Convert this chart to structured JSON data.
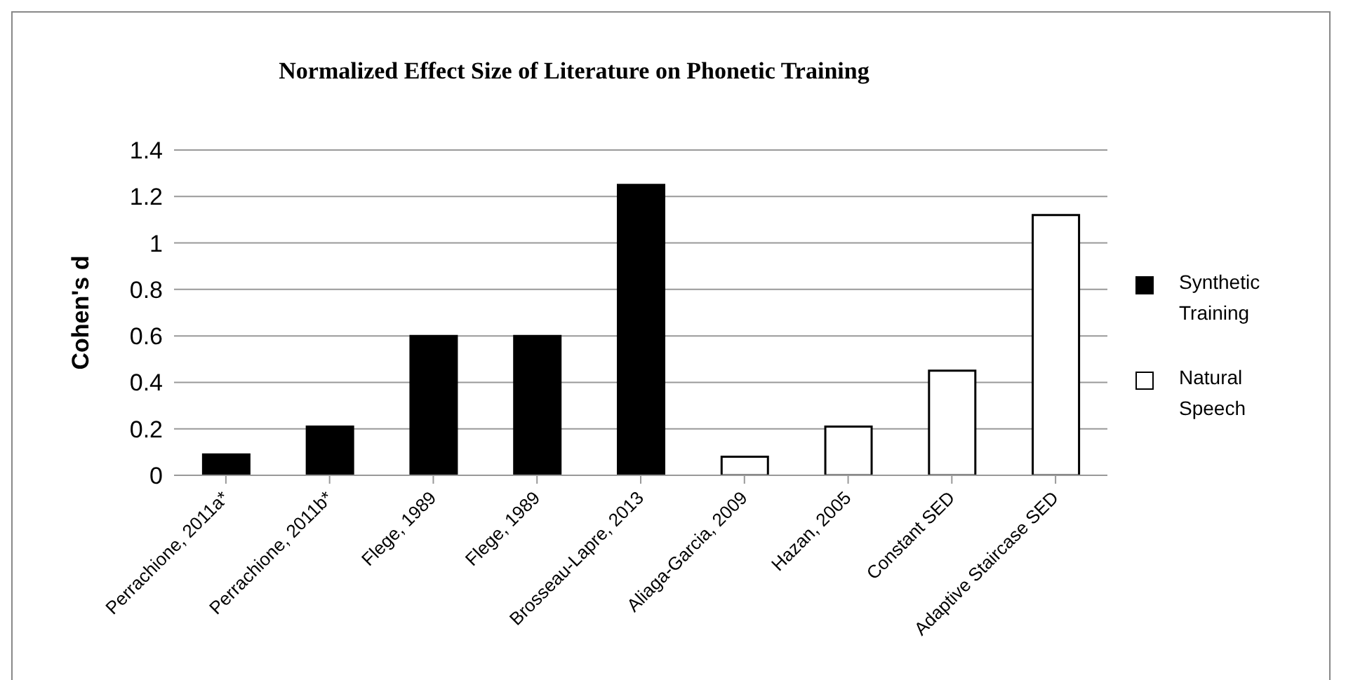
{
  "chart_data": {
    "type": "bar",
    "title": "Normalized Effect Size of Literature on Phonetic Training",
    "ylabel": "Cohen's d",
    "categories": [
      "Perrachione, 2011a*",
      "Perrachione, 2011b*",
      "Flege, 1989",
      "Flege, 1989",
      "Brosseau-Lapre, 2013",
      "Aliaga-Garcia, 2009",
      "Hazan, 2005",
      "Constant SED",
      "Adaptive Staircase SED"
    ],
    "series": [
      {
        "name": "Synthetic Training",
        "color": "#000000",
        "values": [
          0.09,
          0.21,
          0.6,
          0.6,
          1.25,
          null,
          null,
          null,
          null
        ]
      },
      {
        "name": "Natural Speech",
        "color": "#ffffff",
        "values": [
          null,
          null,
          null,
          null,
          null,
          0.08,
          0.21,
          0.45,
          1.12
        ]
      }
    ],
    "stacked": true,
    "ylim": [
      0,
      1.4
    ],
    "yticks": [
      0,
      0.2,
      0.4,
      0.6,
      0.8,
      1,
      1.2,
      1.4
    ],
    "grid": "y",
    "legend": "right"
  }
}
